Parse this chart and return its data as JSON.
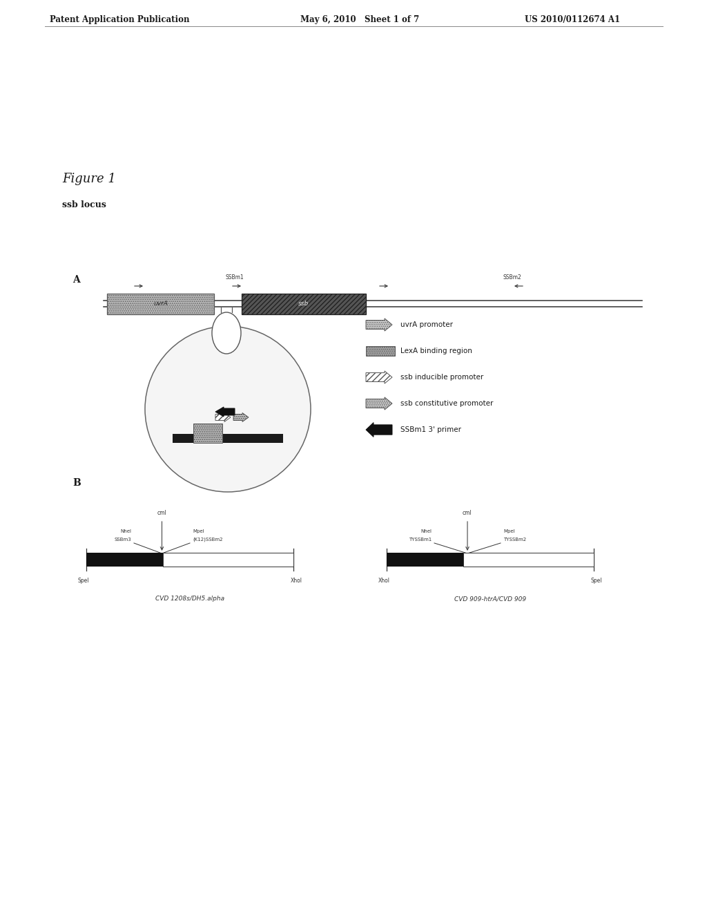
{
  "header_left": "Patent Application Publication",
  "header_mid": "May 6, 2010   Sheet 1 of 7",
  "header_right": "US 2010/0112674 A1",
  "figure_label": "Figure 1",
  "sublabel_a": "ssb locus",
  "section_a": "A",
  "section_b": "B",
  "legend_items": [
    {
      "symbol": "arrow_open",
      "text": "uvrA promoter"
    },
    {
      "symbol": "rect_hatched",
      "text": "LexA binding region"
    },
    {
      "symbol": "arrow_diag",
      "text": "ssb inducible promoter"
    },
    {
      "symbol": "arrow_dotted",
      "text": "ssb constitutive promoter"
    },
    {
      "symbol": "arrow_filled",
      "text": "SSBm1 3' primer"
    }
  ],
  "diagram_b_left_label": "CVD 1208s/DH5.alpha",
  "diagram_b_right_label": "CVD 909-htrA/CVD 909",
  "bg_color": "#ffffff",
  "text_color": "#1a1a1a"
}
